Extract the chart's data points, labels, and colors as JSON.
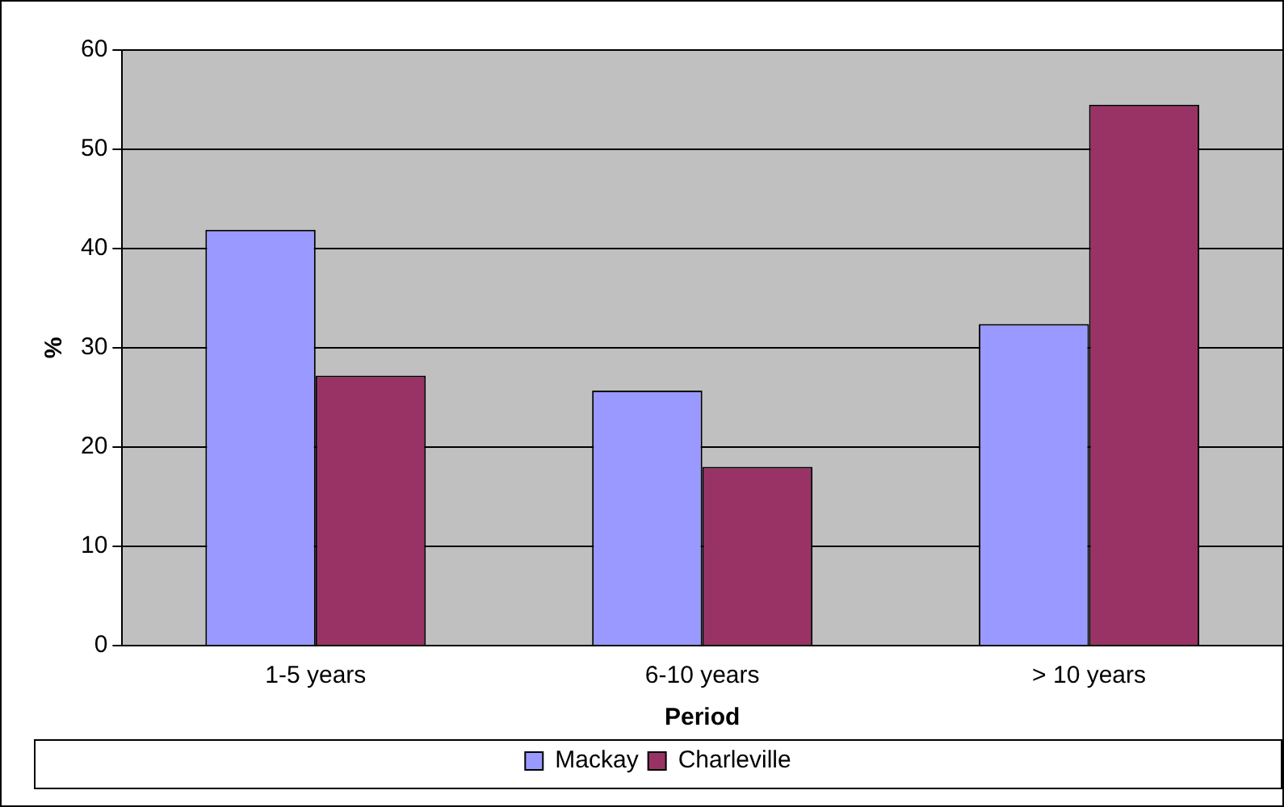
{
  "chart_data": {
    "type": "bar",
    "xlabel": "Period",
    "ylabel": "%",
    "categories": [
      "1-5 years",
      "6-10 years",
      "> 10 years"
    ],
    "series": [
      {
        "name": "Mackay",
        "color": "#9999ff",
        "values": [
          41.9,
          25.7,
          32.4
        ]
      },
      {
        "name": "Charleville",
        "color": "#993366",
        "values": [
          27.2,
          18.0,
          54.5
        ]
      }
    ],
    "ylim": [
      0,
      60
    ],
    "yticks": [
      0,
      10,
      20,
      30,
      40,
      50,
      60
    ],
    "grid": "y",
    "legend": "bottom"
  }
}
